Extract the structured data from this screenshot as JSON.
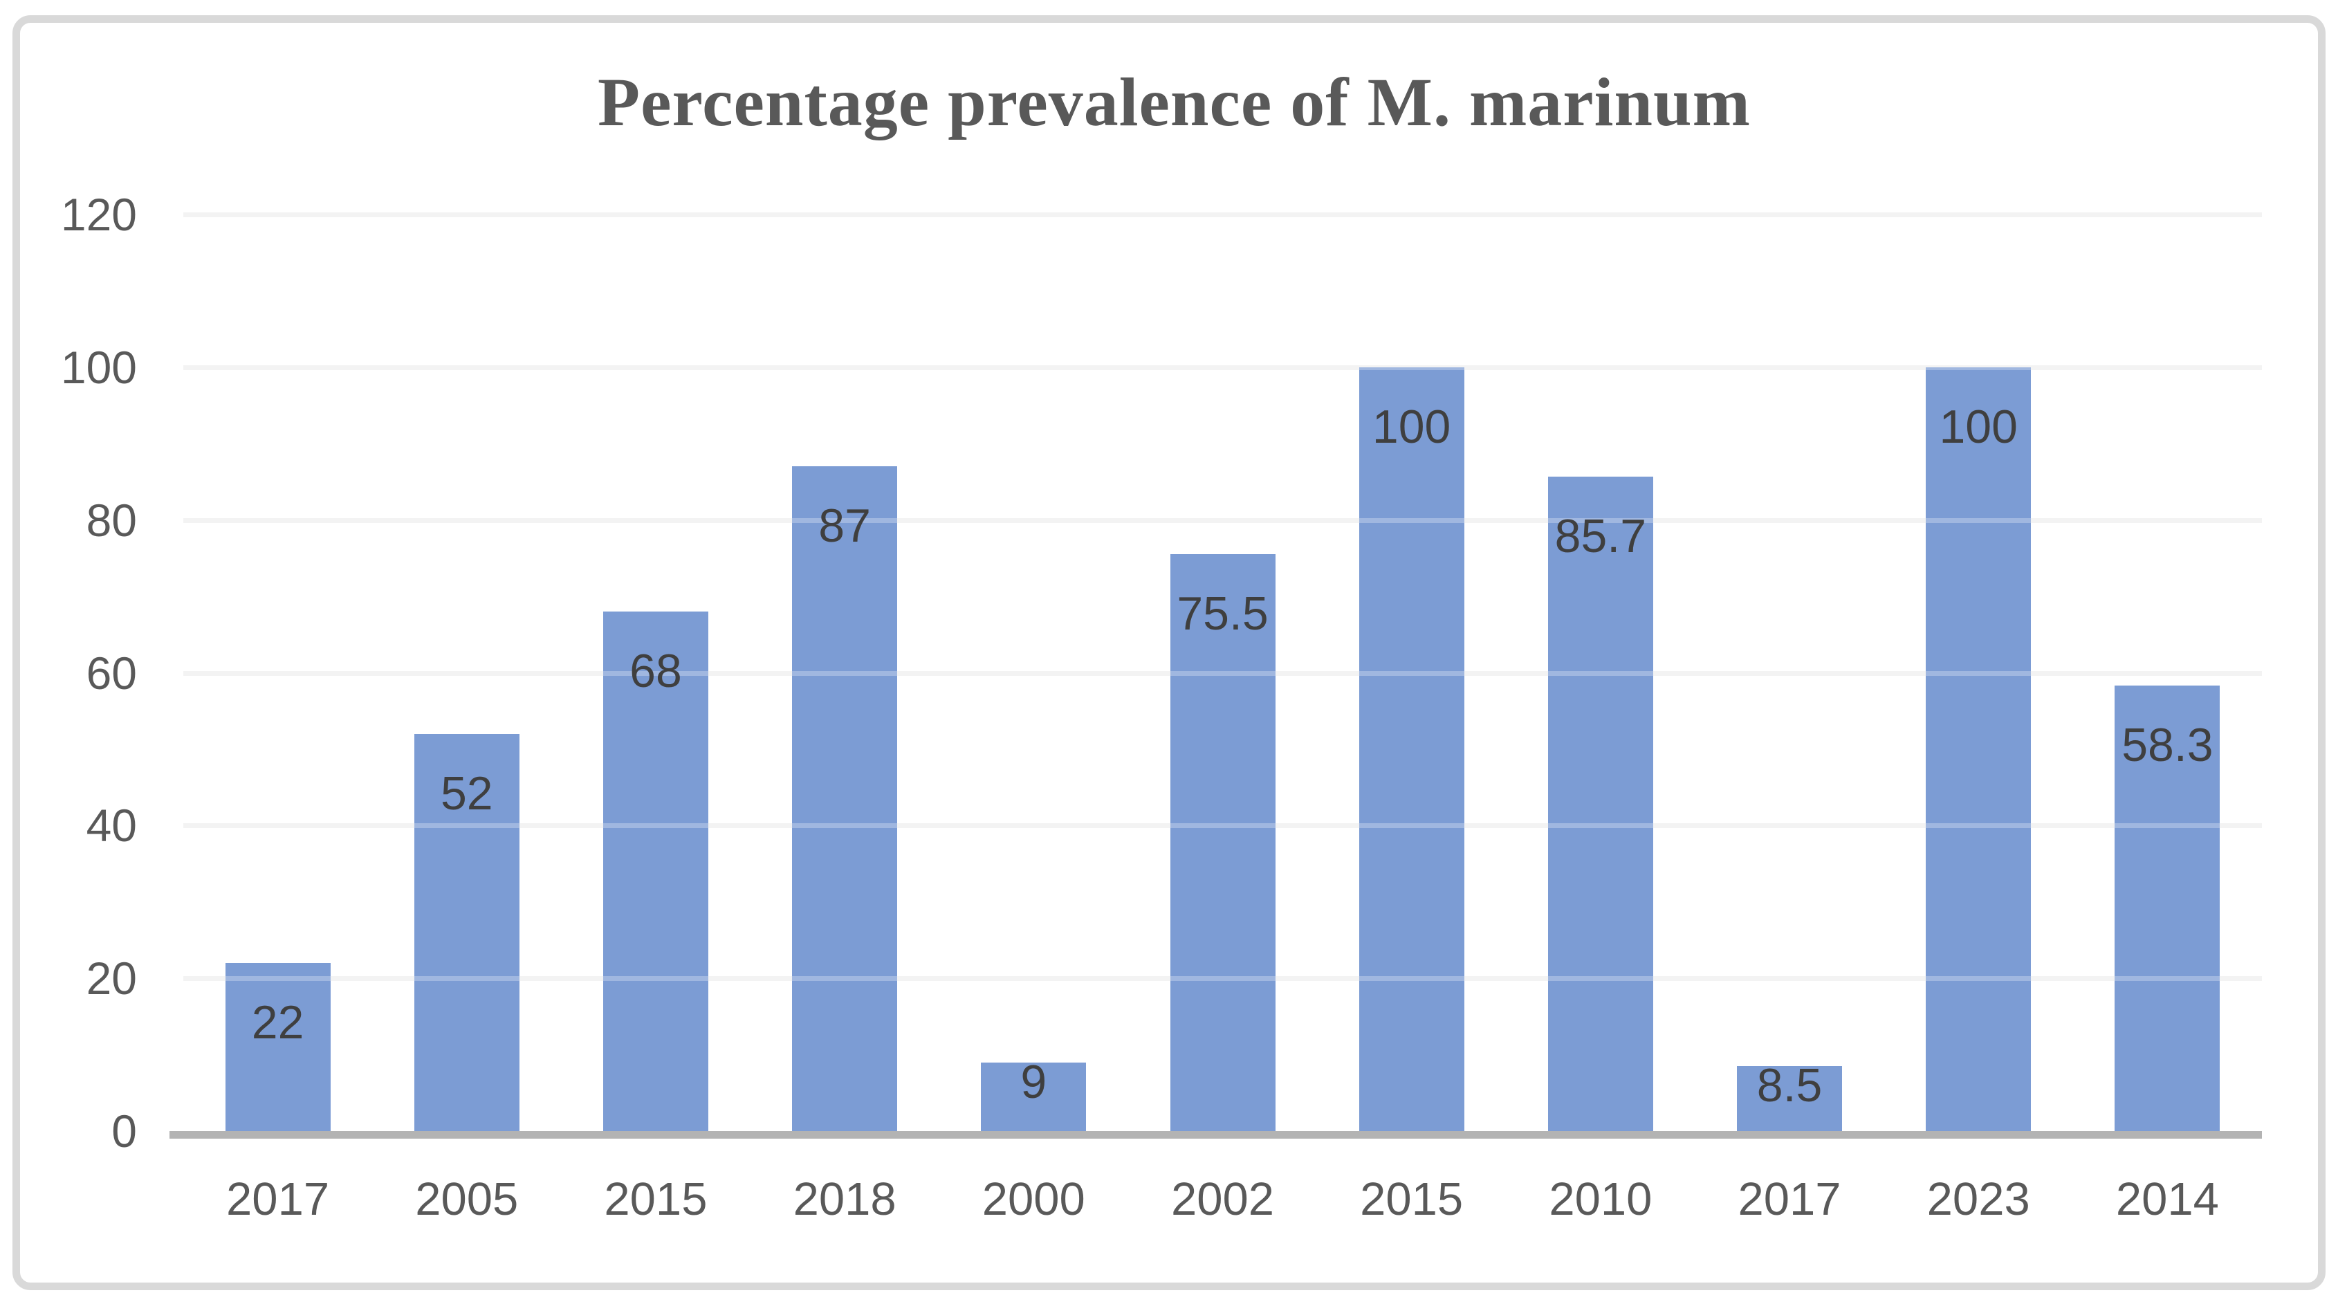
{
  "chart_data": {
    "type": "bar",
    "title": "Percentage prevalence of M. marinum",
    "categories": [
      "2017",
      "2005",
      "2015",
      "2018",
      "2000",
      "2002",
      "2015",
      "2010",
      "2017",
      "2023",
      "2014"
    ],
    "values": [
      22,
      52,
      68,
      87,
      9,
      75.5,
      100,
      85.7,
      8.5,
      100,
      58.3
    ],
    "data_labels": [
      "22",
      "52",
      "68",
      "87",
      "9",
      "75.5",
      "100",
      "85.7",
      "8.5",
      "100",
      "58.3"
    ],
    "y_tick_values": [
      0,
      20,
      40,
      60,
      80,
      100,
      120
    ],
    "y_tick_labels": [
      "0",
      "20",
      "40",
      "60",
      "80",
      "100",
      "120"
    ],
    "ylim": [
      0,
      120
    ],
    "grid": true,
    "legend_position": "none",
    "data_label_position": "inside-end",
    "colors": {
      "bar": "#7C9CD4",
      "gridline": "#EFEFEF",
      "axis_line": "#B3B3B3",
      "tick_labels": "#595959",
      "data_labels": "#3F3F3F",
      "title": "#595959",
      "frame_border": "#D9D9D9",
      "background": "#FFFFFF"
    }
  }
}
